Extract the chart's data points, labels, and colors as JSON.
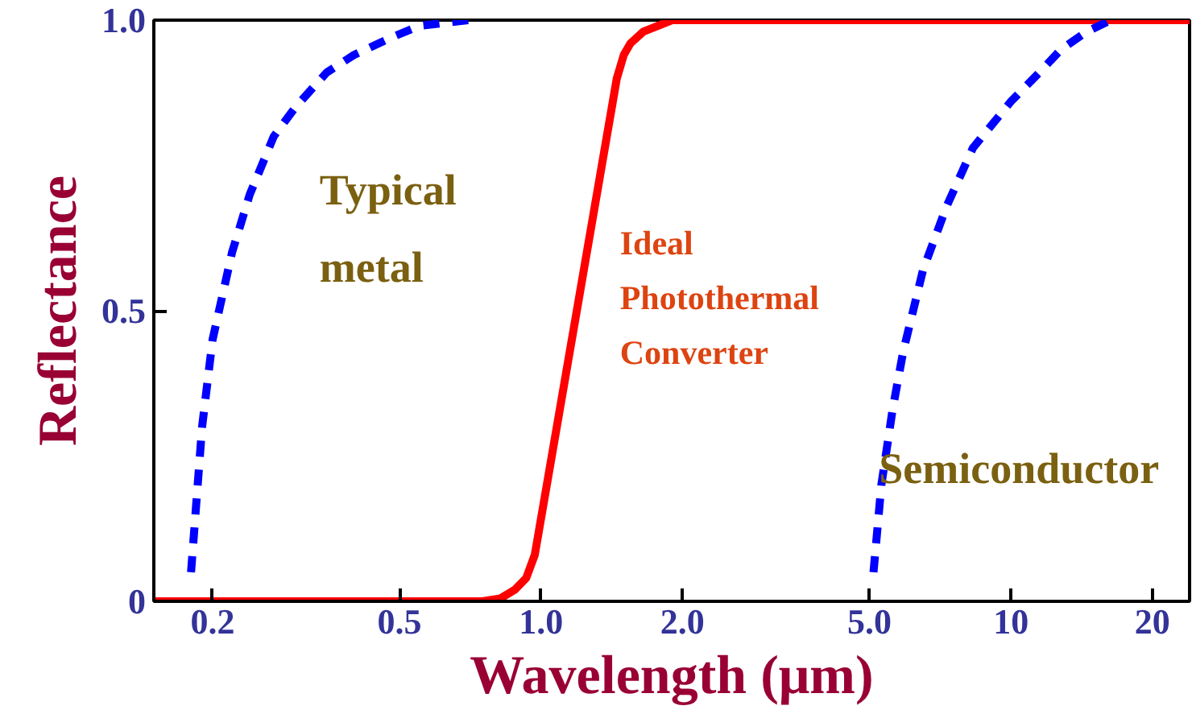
{
  "chart_data": {
    "type": "line",
    "xlabel": "Wavelength (μm)",
    "ylabel": "Reflectance",
    "log": "x",
    "xlim": [
      0.15,
      24
    ],
    "ylim": [
      0,
      1.0
    ],
    "xticks": [
      {
        "value": 0.2,
        "label": "0.2"
      },
      {
        "value": 0.5,
        "label": "0.5"
      },
      {
        "value": 1.0,
        "label": "1.0"
      },
      {
        "value": 2.0,
        "label": "2.0"
      },
      {
        "value": 5.0,
        "label": "5.0"
      },
      10,
      20
    ],
    "yticks": [
      0,
      {
        "value": 0.5,
        "label": "0.5"
      },
      {
        "value": 1.0,
        "label": "1.0"
      }
    ],
    "grid": false,
    "marker": "none",
    "series": [
      {
        "color": "#0000ff",
        "line_style": "dashed",
        "x": [
          0.18,
          0.19,
          0.2,
          0.22,
          0.24,
          0.27,
          0.3,
          0.35,
          0.4,
          0.48,
          0.55,
          0.7
        ],
        "values": [
          0.05,
          0.3,
          0.45,
          0.6,
          0.7,
          0.8,
          0.85,
          0.91,
          0.94,
          0.97,
          0.99,
          1.0
        ]
      },
      {
        "color": "#ff0000",
        "line_style": "solid",
        "x": [
          0.15,
          0.75,
          0.82,
          0.88,
          0.93,
          0.97,
          1.45,
          1.5,
          1.55,
          1.65,
          1.9,
          24
        ],
        "values": [
          0,
          0,
          0.005,
          0.02,
          0.04,
          0.08,
          0.9,
          0.94,
          0.96,
          0.98,
          1.0,
          1.0
        ]
      },
      {
        "color": "#0000ff",
        "line_style": "dashed",
        "x": [
          5.1,
          5.3,
          5.6,
          5.9,
          6.5,
          7.3,
          8.3,
          10,
          11.5,
          12.8,
          14.5,
          16.3
        ],
        "values": [
          0.05,
          0.2,
          0.33,
          0.43,
          0.57,
          0.68,
          0.78,
          0.86,
          0.91,
          0.95,
          0.98,
          1.0
        ]
      }
    ],
    "annotations": [
      "Typical\nmetal",
      "Ideal\nPhotothermal\nConverter",
      "Semiconductor"
    ]
  }
}
